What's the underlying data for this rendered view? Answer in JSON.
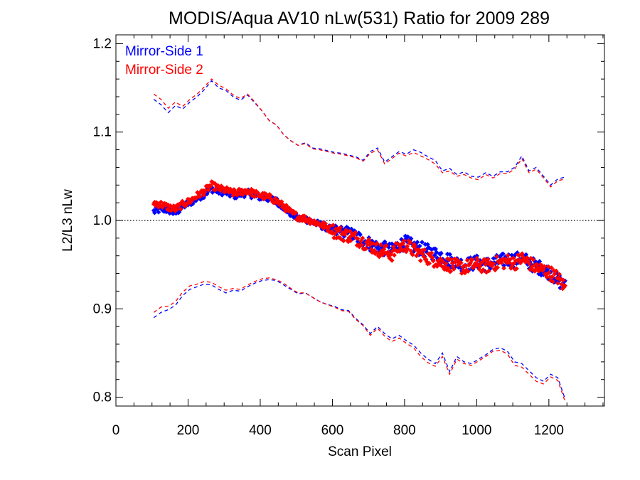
{
  "chart_data": {
    "type": "scatter",
    "title": "MODIS/Aqua AV10 nLw(531) Ratio for 2009 289",
    "xlabel": "Scan Pixel",
    "ylabel": "L2/L3 nLw",
    "xlim": [
      0,
      1354
    ],
    "ylim": [
      0.79,
      1.21
    ],
    "xticks": [
      0,
      200,
      400,
      600,
      800,
      1000,
      1200
    ],
    "xtick_labels": [
      "0",
      "200",
      "400",
      "600",
      "800",
      "1000",
      "1200"
    ],
    "yticks": [
      0.8,
      0.9,
      1.0,
      1.1,
      1.2
    ],
    "ytick_labels": [
      "0.8",
      "0.9",
      "1.0",
      "1.1",
      "1.2"
    ],
    "reference_line": 1.0,
    "legend_position": "top-left",
    "colors": {
      "ms1": "#0000ff",
      "ms2": "#ff0000",
      "reference": "#000000"
    },
    "series": [
      {
        "name": "Mirror-Side 1",
        "color": "#0000ff",
        "mean_points": {
          "x": [
            105,
            125,
            145,
            165,
            185,
            205,
            225,
            245,
            265,
            285,
            305,
            325,
            345,
            365,
            385,
            405,
            425,
            445,
            465,
            485,
            505,
            525,
            545,
            565,
            585,
            605,
            625,
            645,
            665,
            685,
            705,
            725,
            745,
            765,
            785,
            805,
            825,
            845,
            865,
            885,
            905,
            925,
            945,
            965,
            985,
            1005,
            1025,
            1045,
            1065,
            1085,
            1105,
            1125,
            1145,
            1165,
            1185,
            1205,
            1225,
            1245
          ],
          "y": [
            1.01,
            1.013,
            1.012,
            1.008,
            1.016,
            1.02,
            1.025,
            1.03,
            1.036,
            1.033,
            1.032,
            1.028,
            1.03,
            1.031,
            1.028,
            1.026,
            1.025,
            1.022,
            1.015,
            1.008,
            1.002,
            1.002,
            0.998,
            0.995,
            0.992,
            0.988,
            0.986,
            0.985,
            0.982,
            0.978,
            0.973,
            0.97,
            0.968,
            0.966,
            0.972,
            0.975,
            0.97,
            0.968,
            0.965,
            0.962,
            0.96,
            0.955,
            0.952,
            0.95,
            0.951,
            0.953,
            0.95,
            0.952,
            0.954,
            0.956,
            0.955,
            0.958,
            0.952,
            0.948,
            0.945,
            0.94,
            0.933,
            0.925
          ]
        },
        "upper_envelope": {
          "x": [
            105,
            125,
            145,
            165,
            185,
            205,
            225,
            245,
            265,
            285,
            305,
            325,
            345,
            365,
            385,
            405,
            425,
            445,
            465,
            485,
            505,
            525,
            545,
            565,
            585,
            605,
            625,
            645,
            665,
            685,
            705,
            725,
            745,
            765,
            785,
            805,
            825,
            845,
            865,
            885,
            905,
            925,
            945,
            965,
            985,
            1005,
            1025,
            1045,
            1065,
            1085,
            1105,
            1125,
            1145,
            1165,
            1185,
            1205,
            1225,
            1245
          ],
          "y": [
            1.137,
            1.131,
            1.122,
            1.13,
            1.126,
            1.134,
            1.14,
            1.148,
            1.158,
            1.15,
            1.147,
            1.14,
            1.136,
            1.142,
            1.133,
            1.124,
            1.113,
            1.108,
            1.097,
            1.09,
            1.085,
            1.088,
            1.082,
            1.081,
            1.079,
            1.077,
            1.076,
            1.074,
            1.072,
            1.068,
            1.078,
            1.082,
            1.066,
            1.072,
            1.078,
            1.075,
            1.08,
            1.077,
            1.072,
            1.068,
            1.056,
            1.059,
            1.052,
            1.055,
            1.05,
            1.049,
            1.054,
            1.05,
            1.055,
            1.055,
            1.06,
            1.073,
            1.056,
            1.06,
            1.05,
            1.04,
            1.047,
            1.049
          ]
        },
        "lower_envelope": {
          "x": [
            105,
            125,
            145,
            165,
            185,
            205,
            225,
            245,
            265,
            285,
            305,
            325,
            345,
            365,
            385,
            405,
            425,
            445,
            465,
            485,
            505,
            525,
            545,
            565,
            585,
            605,
            625,
            645,
            665,
            685,
            705,
            725,
            745,
            765,
            785,
            805,
            825,
            845,
            865,
            885,
            905,
            925,
            945,
            965,
            985,
            1005,
            1025,
            1045,
            1065,
            1085,
            1105,
            1125,
            1145,
            1165,
            1185,
            1205,
            1225,
            1245
          ],
          "y": [
            0.89,
            0.896,
            0.899,
            0.904,
            0.915,
            0.922,
            0.925,
            0.928,
            0.927,
            0.922,
            0.918,
            0.921,
            0.92,
            0.925,
            0.929,
            0.932,
            0.933,
            0.932,
            0.927,
            0.922,
            0.917,
            0.918,
            0.913,
            0.908,
            0.905,
            0.903,
            0.899,
            0.898,
            0.889,
            0.882,
            0.872,
            0.88,
            0.872,
            0.866,
            0.87,
            0.864,
            0.859,
            0.85,
            0.843,
            0.838,
            0.85,
            0.829,
            0.846,
            0.84,
            0.838,
            0.843,
            0.848,
            0.854,
            0.856,
            0.852,
            0.84,
            0.838,
            0.83,
            0.822,
            0.818,
            0.826,
            0.822,
            0.798
          ]
        }
      },
      {
        "name": "Mirror-Side 2",
        "color": "#ff0000",
        "mean_points": {
          "x": [
            105,
            125,
            145,
            165,
            185,
            205,
            225,
            245,
            265,
            285,
            305,
            325,
            345,
            365,
            385,
            405,
            425,
            445,
            465,
            485,
            505,
            525,
            545,
            565,
            585,
            605,
            625,
            645,
            665,
            685,
            705,
            725,
            745,
            765,
            785,
            805,
            825,
            845,
            865,
            885,
            905,
            925,
            945,
            965,
            985,
            1005,
            1025,
            1045,
            1065,
            1085,
            1105,
            1125,
            1145,
            1165,
            1185,
            1205,
            1225,
            1245
          ],
          "y": [
            1.02,
            1.018,
            1.015,
            1.013,
            1.018,
            1.022,
            1.028,
            1.033,
            1.04,
            1.036,
            1.034,
            1.031,
            1.032,
            1.034,
            1.03,
            1.028,
            1.026,
            1.022,
            1.016,
            1.009,
            1.004,
            1.002,
            0.999,
            0.996,
            0.992,
            0.988,
            0.985,
            0.983,
            0.98,
            0.976,
            0.972,
            0.967,
            0.965,
            0.962,
            0.97,
            0.972,
            0.966,
            0.962,
            0.958,
            0.955,
            0.952,
            0.95,
            0.948,
            0.947,
            0.949,
            0.95,
            0.948,
            0.951,
            0.952,
            0.954,
            0.952,
            0.957,
            0.952,
            0.946,
            0.944,
            0.94,
            0.935,
            0.924
          ]
        },
        "upper_envelope": {
          "x": [
            105,
            125,
            145,
            165,
            185,
            205,
            225,
            245,
            265,
            285,
            305,
            325,
            345,
            365,
            385,
            405,
            425,
            445,
            465,
            485,
            505,
            525,
            545,
            565,
            585,
            605,
            625,
            645,
            665,
            685,
            705,
            725,
            745,
            765,
            785,
            805,
            825,
            845,
            865,
            885,
            905,
            925,
            945,
            965,
            985,
            1005,
            1025,
            1045,
            1065,
            1085,
            1105,
            1125,
            1145,
            1165,
            1185,
            1205,
            1225,
            1245
          ],
          "y": [
            1.143,
            1.137,
            1.127,
            1.134,
            1.129,
            1.137,
            1.143,
            1.151,
            1.16,
            1.153,
            1.149,
            1.142,
            1.138,
            1.143,
            1.134,
            1.124,
            1.113,
            1.108,
            1.097,
            1.09,
            1.085,
            1.087,
            1.081,
            1.08,
            1.078,
            1.076,
            1.075,
            1.073,
            1.071,
            1.067,
            1.076,
            1.08,
            1.064,
            1.07,
            1.076,
            1.073,
            1.077,
            1.073,
            1.069,
            1.064,
            1.054,
            1.056,
            1.05,
            1.052,
            1.048,
            1.046,
            1.052,
            1.048,
            1.053,
            1.053,
            1.058,
            1.07,
            1.054,
            1.058,
            1.048,
            1.038,
            1.045,
            1.047
          ]
        },
        "lower_envelope": {
          "x": [
            105,
            125,
            145,
            165,
            185,
            205,
            225,
            245,
            265,
            285,
            305,
            325,
            345,
            365,
            385,
            405,
            425,
            445,
            465,
            485,
            505,
            525,
            545,
            565,
            585,
            605,
            625,
            645,
            665,
            685,
            705,
            725,
            745,
            765,
            785,
            805,
            825,
            845,
            865,
            885,
            905,
            925,
            945,
            965,
            985,
            1005,
            1025,
            1045,
            1065,
            1085,
            1105,
            1125,
            1145,
            1165,
            1185,
            1205,
            1225,
            1245
          ],
          "y": [
            0.896,
            0.902,
            0.903,
            0.908,
            0.919,
            0.926,
            0.928,
            0.931,
            0.93,
            0.925,
            0.921,
            0.923,
            0.922,
            0.927,
            0.931,
            0.934,
            0.935,
            0.933,
            0.929,
            0.923,
            0.918,
            0.918,
            0.913,
            0.908,
            0.905,
            0.902,
            0.898,
            0.897,
            0.888,
            0.881,
            0.87,
            0.878,
            0.869,
            0.863,
            0.867,
            0.861,
            0.856,
            0.846,
            0.839,
            0.835,
            0.846,
            0.826,
            0.843,
            0.838,
            0.836,
            0.841,
            0.846,
            0.852,
            0.853,
            0.849,
            0.836,
            0.834,
            0.826,
            0.818,
            0.815,
            0.823,
            0.819,
            0.795
          ]
        }
      }
    ]
  }
}
